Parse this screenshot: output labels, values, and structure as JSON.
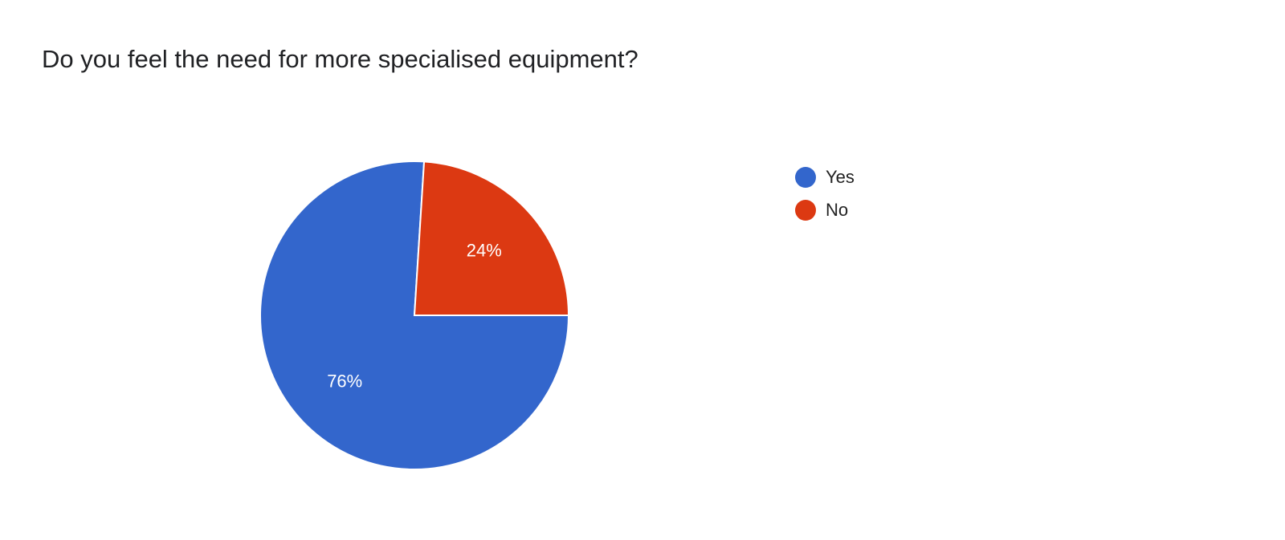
{
  "chart_data": {
    "type": "pie",
    "title": "Do you feel the need for more specialised equipment?",
    "categories": [
      "Yes",
      "No"
    ],
    "values": [
      76,
      24
    ],
    "data_labels": [
      "76%",
      "24%"
    ],
    "colors": [
      "#3366cc",
      "#dc3912"
    ],
    "legend_position": "right"
  }
}
